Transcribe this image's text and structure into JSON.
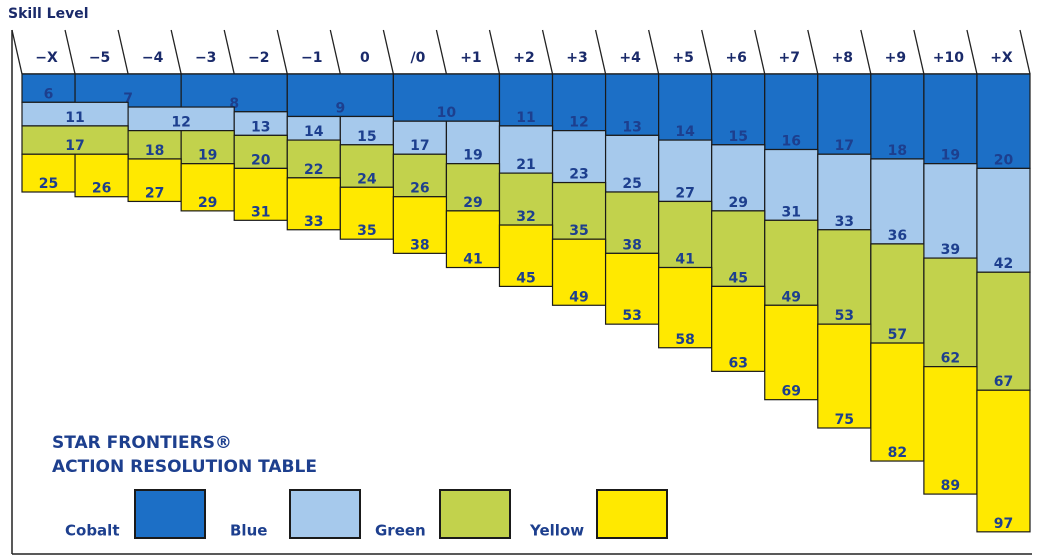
{
  "header": {
    "axis_label": "Skill Level",
    "columns": [
      "−X",
      "−5",
      "−4",
      "−3",
      "−2",
      "−1",
      "0",
      "/0",
      "+1",
      "+2",
      "+3",
      "+4",
      "+5",
      "+6",
      "+7",
      "+8",
      "+9",
      "+10",
      "+X"
    ]
  },
  "bands": [
    {
      "name": "Cobalt",
      "color": "#1c6fc6",
      "values": [
        6,
        7,
        7,
        8,
        8,
        9,
        9,
        10,
        10,
        11,
        12,
        13,
        14,
        15,
        16,
        17,
        18,
        19,
        20
      ]
    },
    {
      "name": "Blue",
      "color": "#a6c9ec",
      "values": [
        11,
        11,
        12,
        12,
        13,
        14,
        15,
        17,
        19,
        21,
        23,
        25,
        27,
        29,
        31,
        33,
        36,
        39,
        42
      ]
    },
    {
      "name": "Green",
      "color": "#c2d24c",
      "values": [
        17,
        17,
        18,
        19,
        20,
        22,
        24,
        26,
        29,
        32,
        35,
        38,
        41,
        45,
        49,
        53,
        57,
        62,
        67
      ]
    },
    {
      "name": "Yellow",
      "color": "#ffe900",
      "values": [
        25,
        26,
        27,
        29,
        31,
        33,
        35,
        38,
        41,
        45,
        49,
        53,
        58,
        63,
        69,
        75,
        82,
        89,
        97
      ]
    }
  ],
  "title": [
    "STAR FRONTIERS®",
    "ACTION RESOLUTION TABLE"
  ]
}
